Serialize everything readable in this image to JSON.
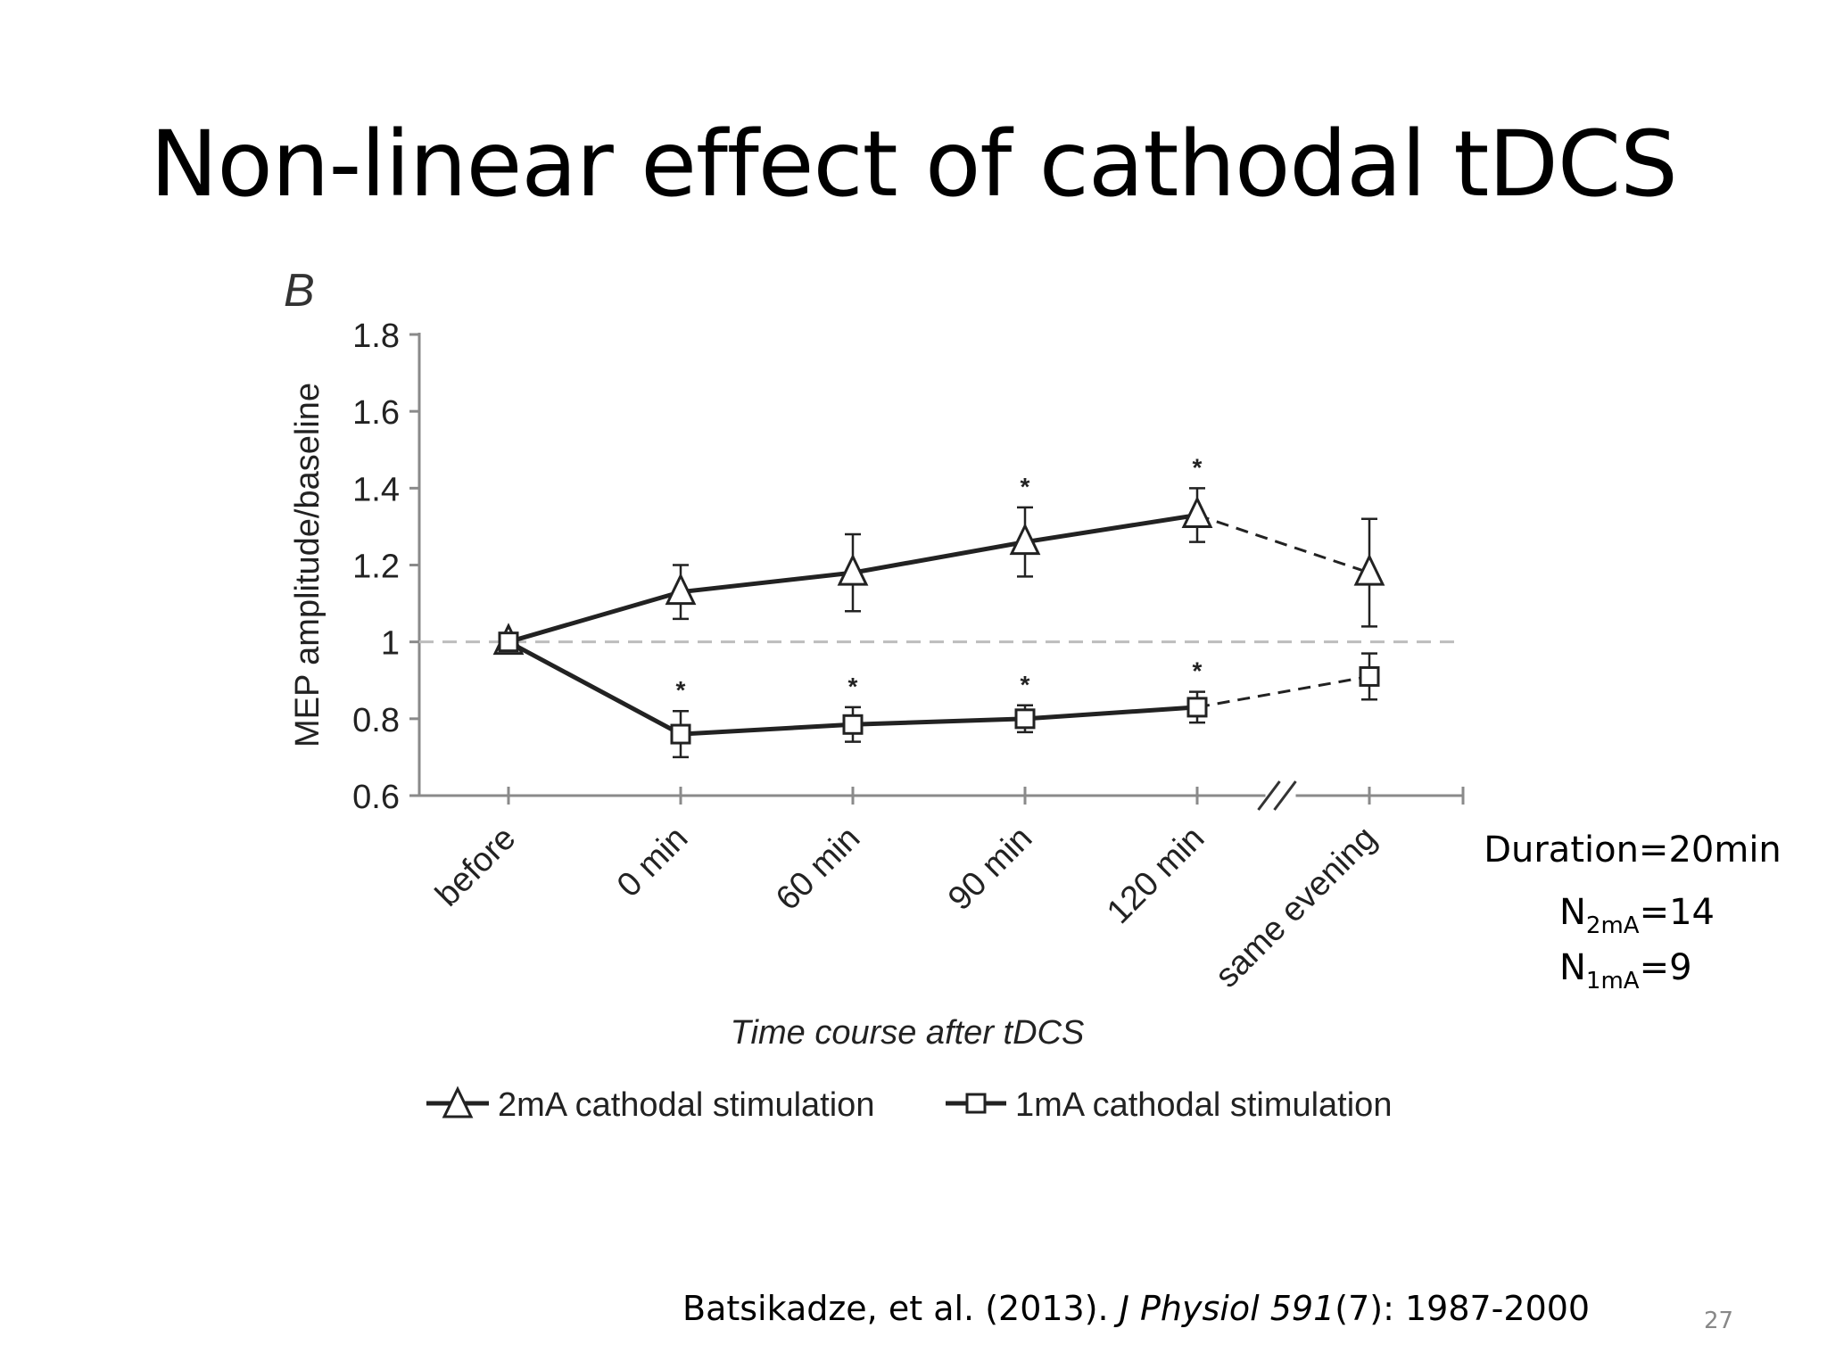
{
  "slide": {
    "title": "Non-linear effect of cathodal tDCS",
    "info": {
      "duration": "Duration=20min",
      "n_2ma_prefix": "N",
      "n_2ma_sub": "2mA",
      "n_2ma_value": "=14",
      "n_1ma_prefix": "N",
      "n_1ma_sub": "1mA",
      "n_1ma_value": "=9"
    },
    "citation": {
      "authors": "Batsikadze, et al. (2013). ",
      "journal": "J Physiol 591",
      "issue": "(7): 1987-2000"
    },
    "page_number": "27"
  },
  "chart_data": {
    "type": "line",
    "panel_label": "B",
    "title": "",
    "xlabel": "Time course after tDCS",
    "ylabel": "MEP amplitude/baseline",
    "categories": [
      "before",
      "0 min",
      "60 min",
      "90 min",
      "120 min",
      "same evening"
    ],
    "ylim": [
      0.6,
      1.8
    ],
    "yticks": [
      "0.6",
      "0.8",
      "1",
      "1.2",
      "1.4",
      "1.6",
      "1.8"
    ],
    "ytick_values": [
      0.6,
      0.8,
      1.0,
      1.2,
      1.4,
      1.6,
      1.8
    ],
    "reference_line": 1.0,
    "axis_break_between": [
      "120 min",
      "same evening"
    ],
    "significance_marker": "*",
    "series": [
      {
        "name": "2mA cathodal stimulation",
        "marker": "triangle",
        "values": [
          1.0,
          1.13,
          1.18,
          1.26,
          1.33,
          1.18
        ],
        "errors": [
          0.02,
          0.07,
          0.1,
          0.09,
          0.07,
          0.14
        ],
        "significant": [
          false,
          false,
          false,
          true,
          true,
          false
        ],
        "dashed_from_index": 4
      },
      {
        "name": "1mA cathodal stimulation",
        "marker": "square",
        "values": [
          1.0,
          0.76,
          0.785,
          0.8,
          0.83,
          0.91
        ],
        "errors": [
          0.02,
          0.06,
          0.045,
          0.035,
          0.04,
          0.06
        ],
        "significant": [
          false,
          true,
          true,
          true,
          true,
          false
        ],
        "dashed_from_index": 4
      }
    ],
    "legend": {
      "position": "bottom"
    }
  }
}
